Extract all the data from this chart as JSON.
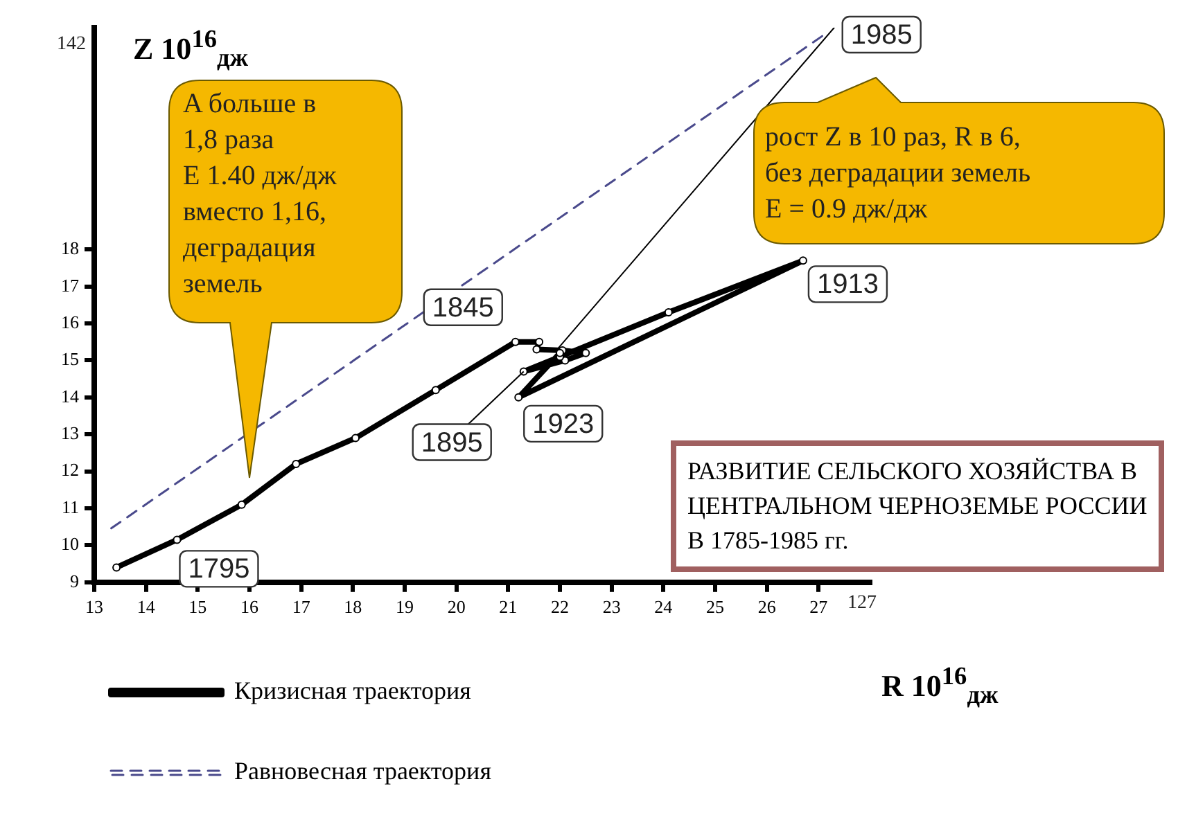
{
  "chart_data": {
    "type": "line",
    "title": "РАЗВИТИЕ СЕЛЬСКОГО ХОЗЯЙСТВА В ЦЕНТРАЛЬНОМ ЧЕРНОЗЕМЬЕ РОССИИ В 1785-1985 гг.",
    "xlabel": "R 10$^{16}$$_{дж}$",
    "ylabel": "Z 10$^{16}$$_{дж}$",
    "xlim": [
      13,
      28
    ],
    "ylim": [
      9,
      24
    ],
    "xticks": [
      13,
      14,
      15,
      16,
      17,
      18,
      19,
      20,
      21,
      22,
      23,
      24,
      25,
      26,
      27
    ],
    "yticks": [
      9,
      10,
      11,
      12,
      13,
      14,
      15,
      16,
      17,
      18
    ],
    "legend": "bottom",
    "series": [
      {
        "name": "Кризисная траектория",
        "color": "#000000",
        "marker": "circle",
        "line_style": "solid",
        "x": [
          13.43,
          14.6,
          15.85,
          16.9,
          18.05,
          19.6,
          21.14,
          21.6,
          21.55,
          22.05,
          22.5,
          22.1,
          21.3,
          22.0,
          24.1,
          26.7,
          21.2,
          22.0
        ],
        "values": [
          9.4,
          10.15,
          11.1,
          12.2,
          12.9,
          14.2,
          15.5,
          15.5,
          15.3,
          15.27,
          15.2,
          15.0,
          14.7,
          15.1,
          16.3,
          17.7,
          14.0,
          15.2
        ]
      },
      {
        "color": "#000000",
        "marker": "none",
        "line_style": "solid",
        "x": [
          21.95,
          27.3
        ],
        "values": [
          15.3,
          24
        ]
      },
      {
        "name": "Равновесная траектория",
        "color": "#4a4a8c",
        "marker": "none",
        "line_style": "dashed",
        "x": [
          13.33,
          27.2
        ],
        "values": [
          10.46,
          23.9
        ]
      }
    ],
    "annotations": [
      "A больше в\n1,8 раза\nE 1.40 дж/дж\nвместо 1,16,\nдеградация\nземель",
      "рост Z в 10 раз, R в 6,\nбез деградации земель\nE = 0.9 дж/дж",
      {
        "text": "1795",
        "x": 14.6,
        "y": 10.15
      },
      {
        "text": "1845",
        "x": 21.14,
        "y": 15.5
      },
      {
        "text": "1895",
        "x": 21.3,
        "y": 14.7
      },
      {
        "text": "1913",
        "x": 26.7,
        "y": 17.7
      },
      {
        "text": "1923",
        "x": 21.2,
        "y": 14.0
      },
      {
        "text": "1985",
        "x": 27.3,
        "y": 24
      },
      "142",
      "127"
    ]
  }
}
